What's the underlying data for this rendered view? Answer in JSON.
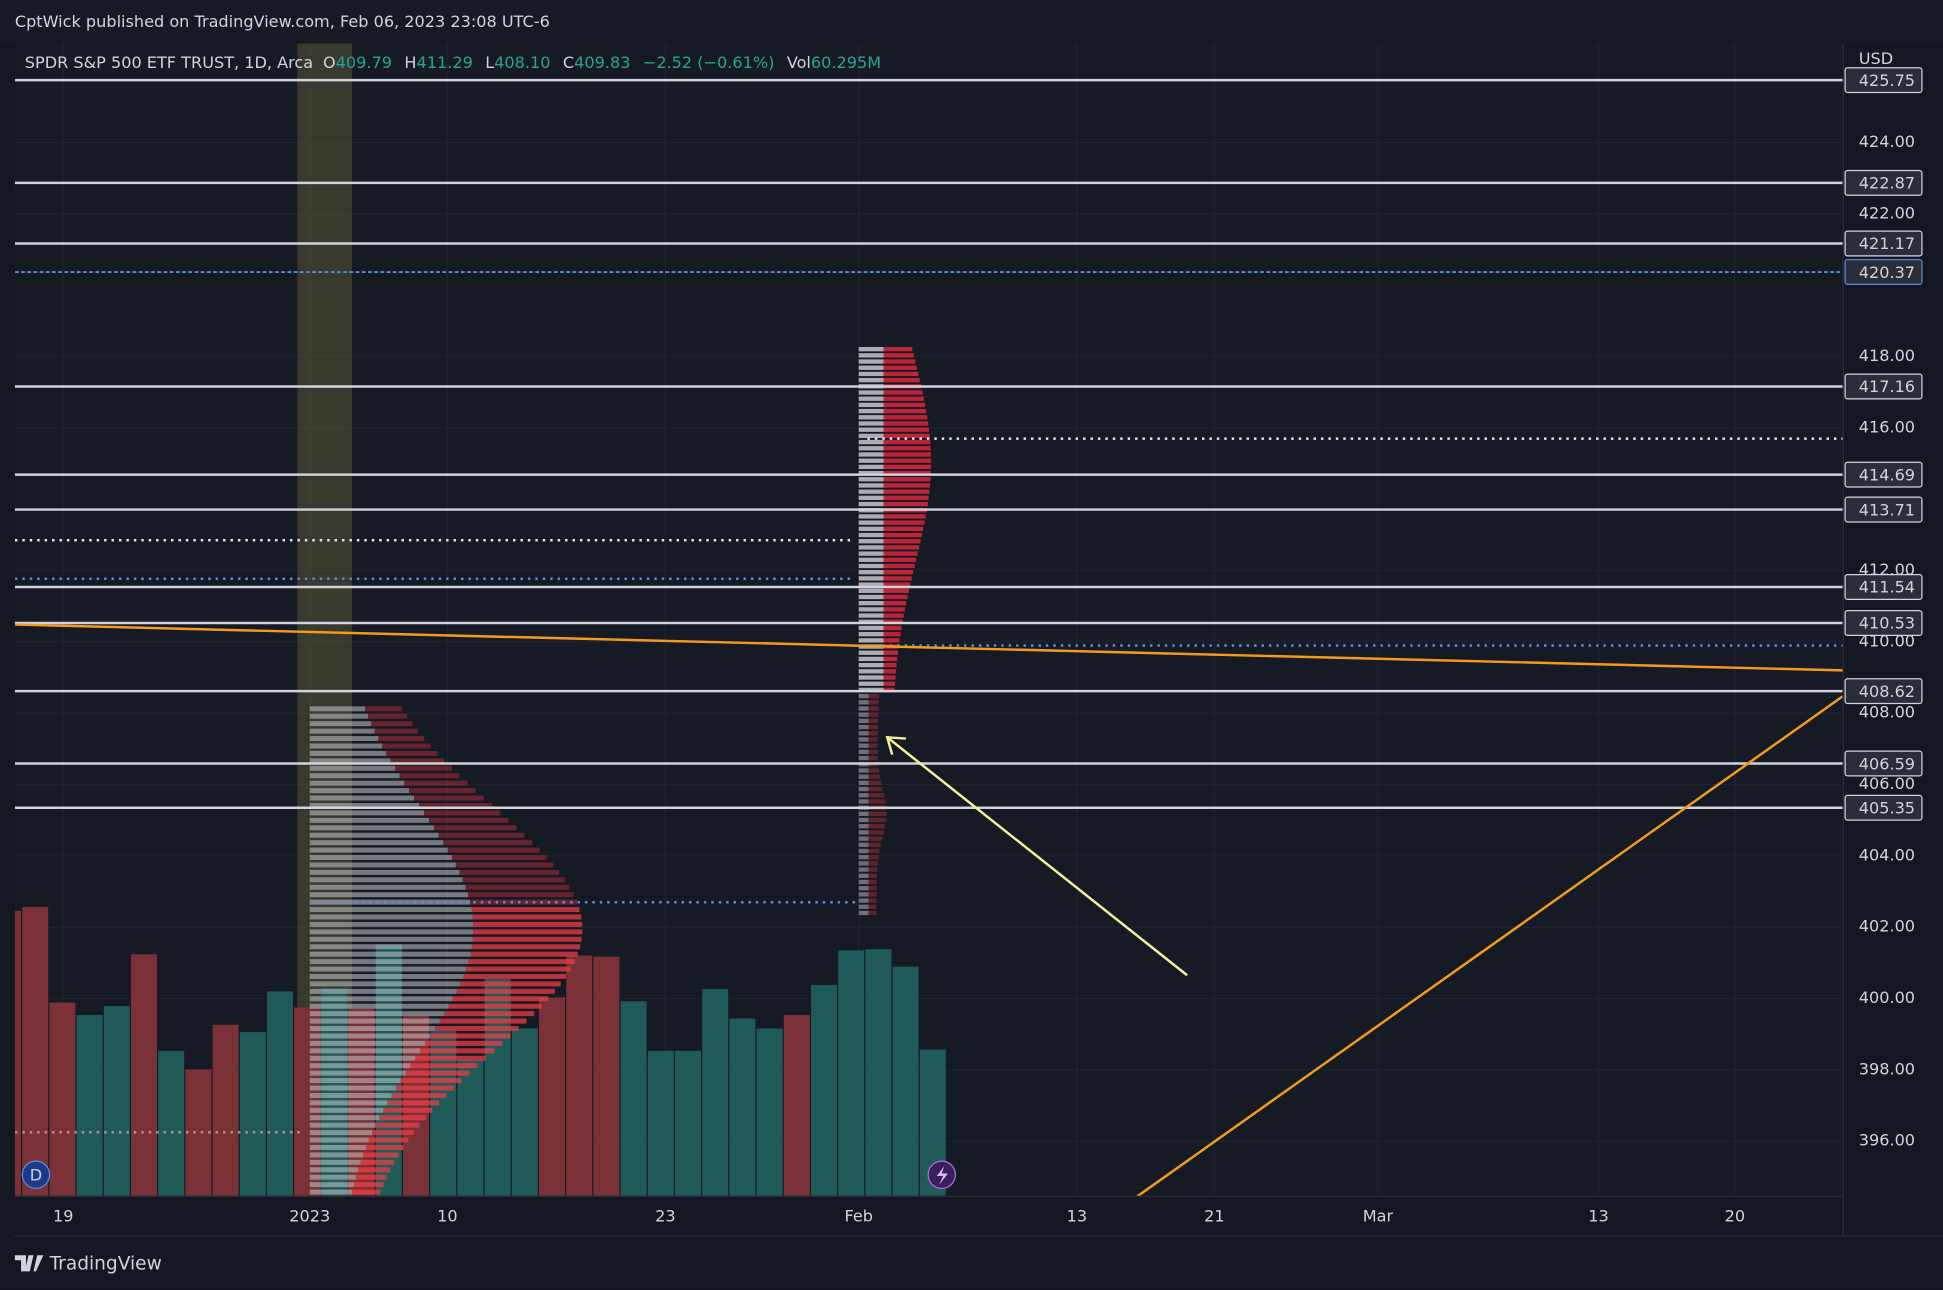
{
  "header": {
    "publisher": "CptWick published on TradingView.com, Feb 06, 2023 23:08 UTC-6"
  },
  "footer": {
    "brand": "TradingView"
  },
  "chart_data": {
    "type": "levels",
    "title": "SPDR S&P 500 ETF TRUST, 1D, Arca",
    "ohlc": {
      "names": [
        "O",
        "H",
        "L",
        "C"
      ],
      "values": [
        409.79,
        411.29,
        408.1,
        409.83
      ],
      "value_labels": [
        "409.79",
        "411.29",
        "408.10",
        "409.83"
      ]
    },
    "change": "−2.52 (−0.61%)",
    "volume_name": "Vol",
    "volume_label": "60.295M",
    "currency": "USD",
    "ylim": [
      394.47,
      426.78
    ],
    "yticks": [
      {
        "value": 424,
        "label": "424.00"
      },
      {
        "value": 422,
        "label": "422.00"
      },
      {
        "value": 418,
        "label": "418.00"
      },
      {
        "value": 416,
        "label": "416.00"
      },
      {
        "value": 412,
        "label": "412.00"
      },
      {
        "value": 410,
        "label": "410.00"
      },
      {
        "value": 408,
        "label": "408.00"
      },
      {
        "value": 406,
        "label": "406.00"
      },
      {
        "value": 404,
        "label": "404.00"
      },
      {
        "value": 402,
        "label": "402.00"
      },
      {
        "value": 400,
        "label": "400.00"
      },
      {
        "value": 398,
        "label": "398.00"
      },
      {
        "value": 396,
        "label": "396.00"
      }
    ],
    "levels": {
      "values": [
        425.75,
        422.87,
        421.17,
        420.37,
        417.16,
        414.69,
        413.71,
        411.54,
        410.53,
        408.62,
        406.59,
        405.35
      ],
      "styles": [
        "solid",
        "solid",
        "solid",
        "dashed",
        "solid",
        "solid",
        "solid",
        "solid",
        "solid",
        "solid",
        "solid",
        "solid"
      ],
      "color": "#d1d4dc",
      "dashed_color": "#5b8ddb"
    },
    "dotted_lines": {
      "values": [
        415.7,
        412.85,
        411.77,
        409.9,
        402.7,
        396.25
      ],
      "colors": [
        "#e0e3eb",
        "#e0e3eb",
        "#5b8ddb",
        "#5b8ddb",
        "#5b8ddb",
        "#c48a9a"
      ]
    },
    "volume": {
      "values": [
        117.5,
        119.1,
        79.7,
        74.6,
        78.2,
        99.6,
        59.8,
        52.1,
        70.5,
        67.5,
        84.3,
        77.7,
        85.8,
        77.2,
        103.7,
        74.1,
        68.0,
        56.2,
        89.4,
        69.0,
        81.8,
        99.1,
        98.6,
        80.2,
        59.8,
        59.8,
        85.3,
        73.1,
        69.0,
        74.6,
        86.9,
        101.2,
        101.7,
        94.5,
        60.3
      ],
      "colors": [
        "#7a3236",
        "#7a3236",
        "#7a3236",
        "#1f5c59",
        "#1f5c59",
        "#7a3236",
        "#1f5c59",
        "#7a3236",
        "#7a3236",
        "#1f5c59",
        "#1f5c59",
        "#7a3236",
        "#1f5c59",
        "#7a3236",
        "#1f5c59",
        "#7a3236",
        "#1f5c59",
        "#1f5c59",
        "#1f5c59",
        "#1f5c59",
        "#7a3236",
        "#7a3236",
        "#7a3236",
        "#1f5c59",
        "#1f5c59",
        "#1f5c59",
        "#1f5c59",
        "#1f5c59",
        "#1f5c59",
        "#7a3236",
        "#1f5c59",
        "#1f5c59",
        "#1f5c59",
        "#1f5c59",
        "#1f5c59"
      ]
    },
    "xticks": [
      "19",
      "2023",
      "10",
      "23",
      "Feb",
      "13",
      "21",
      "Mar",
      "13",
      "20"
    ],
    "grid": true
  }
}
